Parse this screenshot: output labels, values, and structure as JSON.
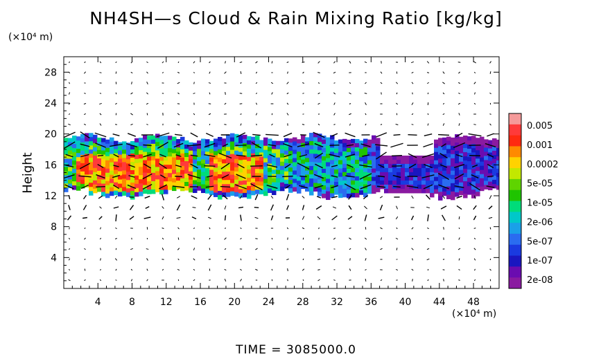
{
  "chart_data": {
    "type": "heatmap",
    "title": "NH4SH—s Cloud & Rain Mixing Ratio [kg/kg]",
    "ylabel": "Height",
    "y_unit": "(×10⁴ m)",
    "x_unit": "(×10⁴ m)",
    "x_ticks": [
      4,
      8,
      12,
      16,
      20,
      24,
      28,
      32,
      36,
      40,
      44,
      48
    ],
    "y_ticks": [
      4,
      8,
      12,
      16,
      20,
      24,
      28
    ],
    "xlim": [
      0,
      51
    ],
    "ylim": [
      0,
      30
    ],
    "colorbar": {
      "labels": [
        "0.005",
        "0.001",
        "0.0002",
        "5e-05",
        "1e-05",
        "2e-06",
        "5e-07",
        "1e-07",
        "2e-08"
      ],
      "colors": [
        "#f59a9a",
        "#ff3a3a",
        "#ff2a10",
        "#ff8a00",
        "#ffd200",
        "#c2e800",
        "#5fd400",
        "#1fc400",
        "#00dc7a",
        "#00c8c8",
        "#1aa0e8",
        "#2a6cf0",
        "#1a3ae0",
        "#1a16c0",
        "#6a0cb0",
        "#8a1aa0"
      ]
    },
    "cloud_layer": {
      "bottom_height": 12.5,
      "top_height": 19.5,
      "x_range": [
        0,
        51
      ],
      "gap_x_range": [
        37,
        43
      ],
      "peak_regions_x": [
        [
          1,
          7
        ],
        [
          7,
          15
        ],
        [
          17,
          23
        ]
      ]
    },
    "footer": "TIME  =  3085000.0"
  }
}
